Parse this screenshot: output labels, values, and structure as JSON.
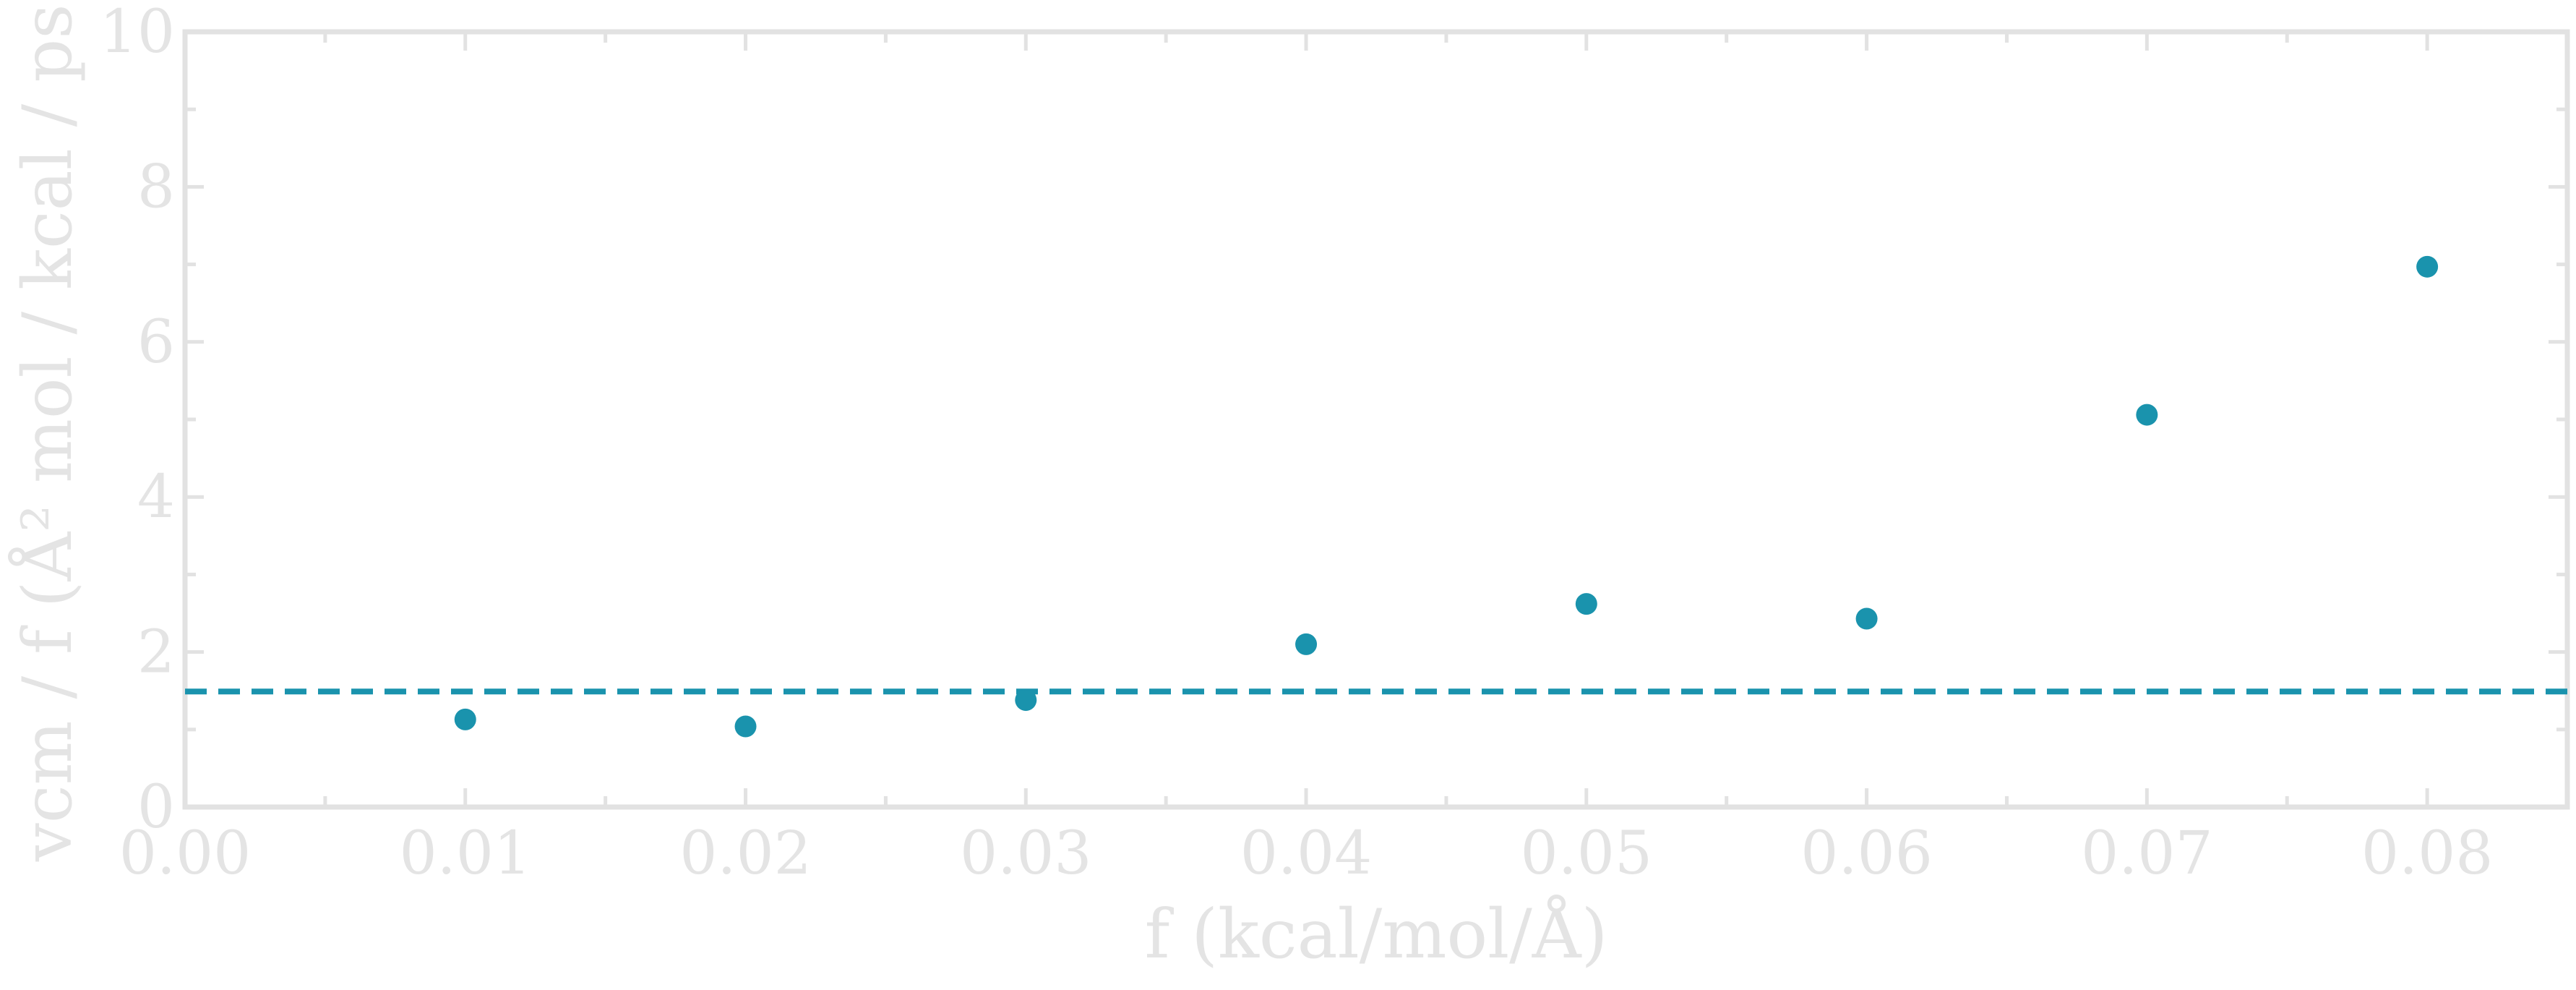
{
  "chart_data": {
    "type": "scatter",
    "title": "",
    "xlabel": "f (kcal/mol/Å)",
    "ylabel": "vcm / f (Å² mol / kcal / ps)",
    "xlim": [
      0.0,
      0.085
    ],
    "ylim": [
      0,
      10
    ],
    "x_ticks": [
      "0.00",
      "0.01",
      "0.02",
      "0.03",
      "0.04",
      "0.05",
      "0.06",
      "0.07",
      "0.08"
    ],
    "y_ticks": [
      "0",
      "2",
      "4",
      "6",
      "8",
      "10"
    ],
    "grid": false,
    "series": [
      {
        "x": [
          0.01,
          0.02,
          0.03,
          0.04,
          0.05,
          0.06,
          0.07,
          0.08
        ],
        "y": [
          1.13,
          1.04,
          1.38,
          2.1,
          2.62,
          2.43,
          5.06,
          6.97
        ]
      }
    ],
    "reference_line": {
      "y": 1.49,
      "style": "dashed"
    },
    "colors": {
      "points": "#1a93ad",
      "reference_line": "#1a93ad",
      "axes": "#e2e2e2",
      "text": "#e4e4e4",
      "background": "#ffffff"
    }
  }
}
